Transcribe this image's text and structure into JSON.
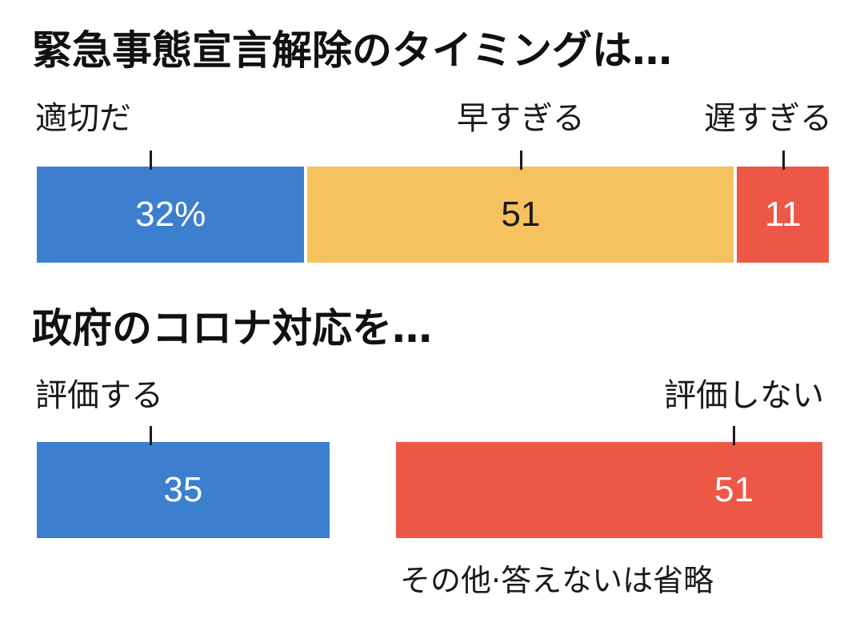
{
  "colors": {
    "blue": "#3d7fcf",
    "yellow": "#f6c15f",
    "red": "#ed5746",
    "text_dark": "#1a1a1a",
    "text_light": "#ffffff"
  },
  "note": "その他·答えないは省略",
  "chart_data": [
    {
      "type": "bar",
      "orientation": "horizontal-stacked",
      "title": "緊急事態宣言解除のタイミングは…",
      "categories": [
        "適切だ",
        "早すぎる",
        "遅すぎる"
      ],
      "values": [
        32,
        51,
        11
      ],
      "value_labels": [
        "32%",
        "51",
        "11"
      ],
      "colors": [
        "#3d7fcf",
        "#f6c15f",
        "#ed5746"
      ],
      "xlim": [
        0,
        100
      ]
    },
    {
      "type": "bar",
      "orientation": "horizontal-split",
      "title": "政府のコロナ対応を…",
      "categories": [
        "評価する",
        "評価しない"
      ],
      "values": [
        35,
        51
      ],
      "value_labels": [
        "35",
        "51"
      ],
      "colors": [
        "#3d7fcf",
        "#ed5746"
      ],
      "xlim": [
        0,
        100
      ]
    }
  ]
}
